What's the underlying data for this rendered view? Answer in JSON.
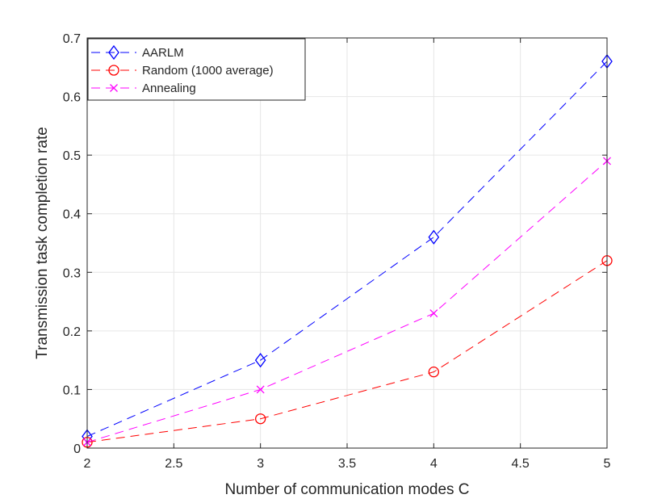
{
  "chart_data": {
    "type": "line",
    "title": "",
    "xlabel": "Number of communication modes C",
    "ylabel": "Transmission task completion rate",
    "xlim": [
      2,
      5
    ],
    "ylim": [
      0,
      0.7
    ],
    "xticks": [
      "2",
      "2.5",
      "3",
      "3.5",
      "4",
      "4.5",
      "5"
    ],
    "yticks": [
      "0",
      "0.1",
      "0.2",
      "0.3",
      "0.4",
      "0.5",
      "0.6",
      "0.7"
    ],
    "grid": true,
    "legend_position": "top-left",
    "x": [
      2,
      3,
      4,
      5
    ],
    "series": [
      {
        "name": "AARLM",
        "values": [
          0.02,
          0.15,
          0.36,
          0.66
        ],
        "color": "#0000ff",
        "marker": "diamond"
      },
      {
        "name": "Random (1000 average)",
        "values": [
          0.01,
          0.05,
          0.13,
          0.32
        ],
        "color": "#ff0000",
        "marker": "circle"
      },
      {
        "name": "Annealing",
        "values": [
          0.01,
          0.1,
          0.23,
          0.49
        ],
        "color": "#ff00ff",
        "marker": "x"
      }
    ]
  }
}
